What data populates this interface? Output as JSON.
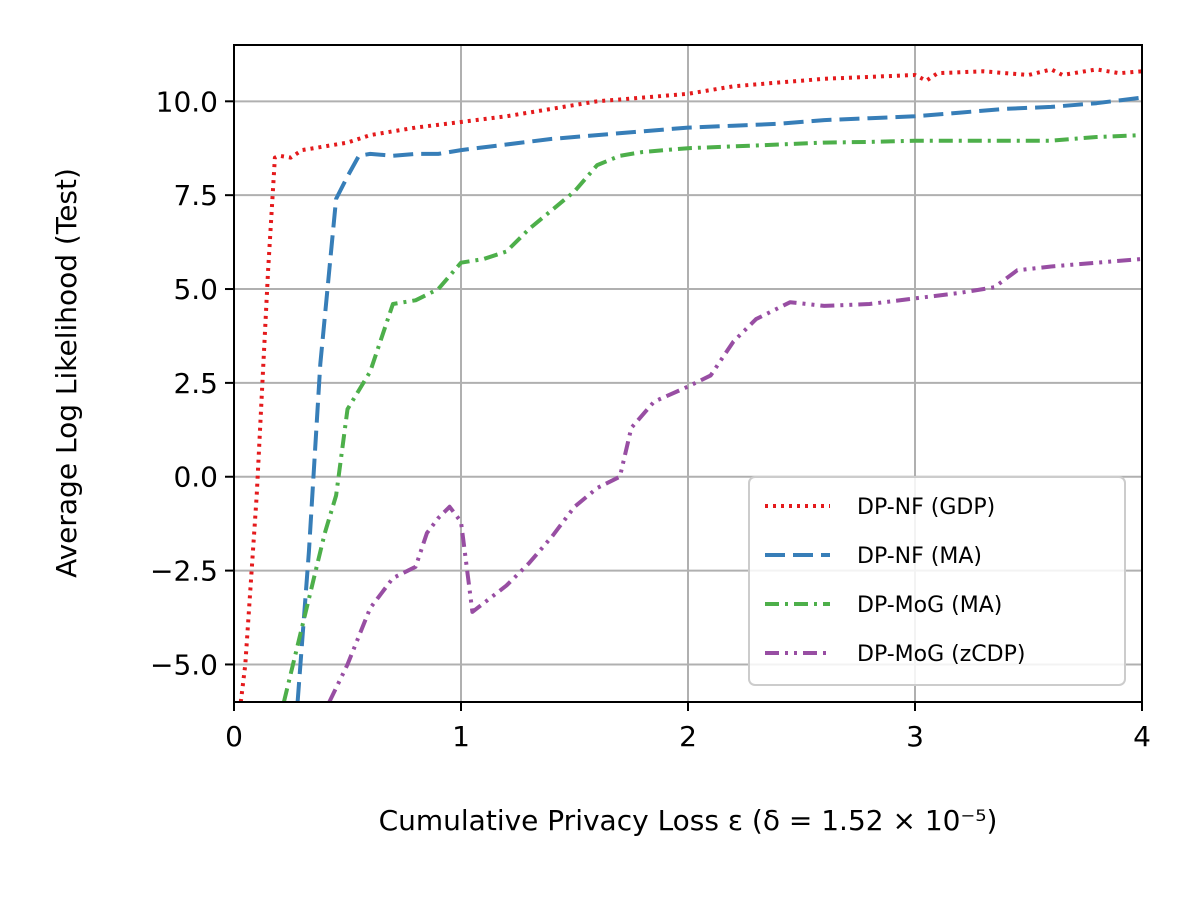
{
  "chart_data": {
    "type": "line",
    "title": "",
    "xlabel": "Cumulative Privacy Loss ε (δ = 1.52 × 10⁻⁵)",
    "ylabel": "Average Log Likelihood (Test)",
    "xlim": [
      0,
      4
    ],
    "ylim": [
      -6,
      11.5
    ],
    "x_ticks": [
      0,
      1,
      2,
      3,
      4
    ],
    "x_tick_labels": [
      "0",
      "1",
      "2",
      "3",
      "4"
    ],
    "y_ticks": [
      -5.0,
      -2.5,
      0.0,
      2.5,
      5.0,
      7.5,
      10.0
    ],
    "y_tick_labels": [
      "−5.0",
      "−2.5",
      "0.0",
      "2.5",
      "5.0",
      "7.5",
      "10.0"
    ],
    "grid": true,
    "legend_position": "lower-right",
    "series": [
      {
        "name": "DP-NF (GDP)",
        "color": "#e41a1c",
        "dash": "dotted",
        "points": [
          [
            0.03,
            -6.0
          ],
          [
            0.05,
            -5.0
          ],
          [
            0.1,
            -0.5
          ],
          [
            0.15,
            5.5
          ],
          [
            0.18,
            8.5
          ],
          [
            0.2,
            8.55
          ],
          [
            0.25,
            8.5
          ],
          [
            0.3,
            8.7
          ],
          [
            0.4,
            8.8
          ],
          [
            0.5,
            8.9
          ],
          [
            0.6,
            9.1
          ],
          [
            0.8,
            9.3
          ],
          [
            1.0,
            9.45
          ],
          [
            1.2,
            9.6
          ],
          [
            1.4,
            9.8
          ],
          [
            1.6,
            10.0
          ],
          [
            1.8,
            10.1
          ],
          [
            2.0,
            10.2
          ],
          [
            2.2,
            10.4
          ],
          [
            2.4,
            10.5
          ],
          [
            2.5,
            10.55
          ],
          [
            2.6,
            10.6
          ],
          [
            2.8,
            10.65
          ],
          [
            3.0,
            10.7
          ],
          [
            3.05,
            10.55
          ],
          [
            3.1,
            10.75
          ],
          [
            3.3,
            10.8
          ],
          [
            3.5,
            10.7
          ],
          [
            3.6,
            10.85
          ],
          [
            3.65,
            10.7
          ],
          [
            3.8,
            10.85
          ],
          [
            3.9,
            10.75
          ],
          [
            4.0,
            10.8
          ]
        ]
      },
      {
        "name": "DP-NF (MA)",
        "color": "#377eb8",
        "dash": "dashed",
        "points": [
          [
            0.28,
            -6.0
          ],
          [
            0.33,
            -2.0
          ],
          [
            0.38,
            3.0
          ],
          [
            0.45,
            7.4
          ],
          [
            0.5,
            8.0
          ],
          [
            0.55,
            8.55
          ],
          [
            0.6,
            8.6
          ],
          [
            0.7,
            8.55
          ],
          [
            0.8,
            8.6
          ],
          [
            0.9,
            8.6
          ],
          [
            1.0,
            8.7
          ],
          [
            1.2,
            8.85
          ],
          [
            1.4,
            9.0
          ],
          [
            1.6,
            9.1
          ],
          [
            1.8,
            9.2
          ],
          [
            2.0,
            9.3
          ],
          [
            2.2,
            9.35
          ],
          [
            2.4,
            9.4
          ],
          [
            2.6,
            9.5
          ],
          [
            2.8,
            9.55
          ],
          [
            3.0,
            9.6
          ],
          [
            3.2,
            9.7
          ],
          [
            3.4,
            9.8
          ],
          [
            3.6,
            9.85
          ],
          [
            3.8,
            9.95
          ],
          [
            4.0,
            10.1
          ]
        ]
      },
      {
        "name": "DP-MoG (MA)",
        "color": "#4daf4a",
        "dash": "dashdot",
        "points": [
          [
            0.22,
            -6.0
          ],
          [
            0.3,
            -4.0
          ],
          [
            0.4,
            -1.5
          ],
          [
            0.45,
            -0.5
          ],
          [
            0.5,
            1.8
          ],
          [
            0.6,
            2.8
          ],
          [
            0.7,
            4.6
          ],
          [
            0.8,
            4.7
          ],
          [
            0.9,
            5.0
          ],
          [
            1.0,
            5.7
          ],
          [
            1.1,
            5.8
          ],
          [
            1.2,
            6.0
          ],
          [
            1.3,
            6.6
          ],
          [
            1.4,
            7.1
          ],
          [
            1.5,
            7.6
          ],
          [
            1.6,
            8.3
          ],
          [
            1.7,
            8.55
          ],
          [
            1.8,
            8.65
          ],
          [
            2.0,
            8.75
          ],
          [
            2.2,
            8.8
          ],
          [
            2.4,
            8.85
          ],
          [
            2.6,
            8.9
          ],
          [
            2.8,
            8.92
          ],
          [
            3.0,
            8.95
          ],
          [
            3.2,
            8.95
          ],
          [
            3.4,
            8.95
          ],
          [
            3.6,
            8.95
          ],
          [
            3.8,
            9.05
          ],
          [
            4.0,
            9.1
          ]
        ]
      },
      {
        "name": "DP-MoG (zCDP)",
        "color": "#984ea3",
        "dash": "dashdotdot",
        "points": [
          [
            0.42,
            -6.0
          ],
          [
            0.5,
            -5.0
          ],
          [
            0.6,
            -3.5
          ],
          [
            0.7,
            -2.7
          ],
          [
            0.8,
            -2.4
          ],
          [
            0.85,
            -1.5
          ],
          [
            0.9,
            -1.1
          ],
          [
            0.95,
            -0.8
          ],
          [
            1.0,
            -1.2
          ],
          [
            1.05,
            -3.6
          ],
          [
            1.2,
            -2.9
          ],
          [
            1.3,
            -2.3
          ],
          [
            1.4,
            -1.6
          ],
          [
            1.5,
            -0.8
          ],
          [
            1.6,
            -0.3
          ],
          [
            1.7,
            0.0
          ],
          [
            1.75,
            1.3
          ],
          [
            1.85,
            2.0
          ],
          [
            2.0,
            2.4
          ],
          [
            2.1,
            2.7
          ],
          [
            2.2,
            3.6
          ],
          [
            2.3,
            4.2
          ],
          [
            2.45,
            4.65
          ],
          [
            2.6,
            4.55
          ],
          [
            2.8,
            4.6
          ],
          [
            3.0,
            4.75
          ],
          [
            3.2,
            4.9
          ],
          [
            3.35,
            5.05
          ],
          [
            3.45,
            5.5
          ],
          [
            3.6,
            5.6
          ],
          [
            3.8,
            5.7
          ],
          [
            4.0,
            5.8
          ]
        ]
      }
    ]
  }
}
